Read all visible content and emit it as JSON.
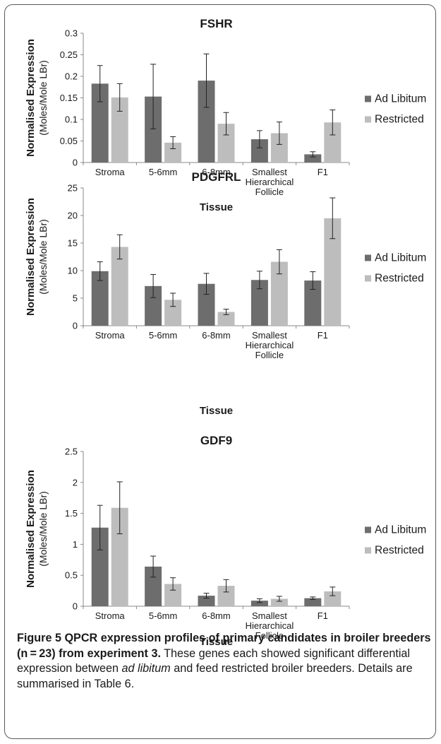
{
  "colors": {
    "ad_libitum": "#6d6d6d",
    "restricted": "#bdbdbd",
    "axis": "#8a8a8a",
    "text": "#1a1a1a"
  },
  "chart_data": [
    {
      "type": "bar",
      "title": "FSHR",
      "xlabel": "Tissue",
      "ylabel": "Normalised Expression",
      "ylabel2": "(Moles/Mole LBr)",
      "ylim": [
        0,
        0.3
      ],
      "yticks": [
        "0",
        "0.05",
        "0.1",
        "0.15",
        "0.2",
        "0.25",
        "0.3"
      ],
      "yticks_values": [
        0,
        0.05,
        0.1,
        0.15,
        0.2,
        0.25,
        0.3
      ],
      "categories": [
        [
          "Stroma"
        ],
        [
          "5-6mm"
        ],
        [
          "6-8mm"
        ],
        [
          "Smallest",
          "Hierarchical",
          "Follicle"
        ],
        [
          "F1"
        ]
      ],
      "grid": false,
      "legend": "right",
      "series": [
        {
          "name": "Ad Libitum",
          "values": [
            0.183,
            0.153,
            0.19,
            0.054,
            0.019
          ],
          "errors": [
            0.042,
            0.075,
            0.062,
            0.02,
            0.006
          ]
        },
        {
          "name": "Restricted",
          "values": [
            0.151,
            0.046,
            0.09,
            0.068,
            0.093
          ],
          "errors": [
            0.032,
            0.014,
            0.026,
            0.026,
            0.029
          ]
        }
      ]
    },
    {
      "type": "bar",
      "title": "PDGFRL",
      "xlabel": "Tissue",
      "ylabel": "Normalised Expression",
      "ylabel2": "(Moles/Mole LBr)",
      "ylim": [
        0,
        25
      ],
      "yticks": [
        "0",
        "5",
        "10",
        "15",
        "20",
        "25"
      ],
      "yticks_values": [
        0,
        5,
        10,
        15,
        20,
        25
      ],
      "categories": [
        [
          "Stroma"
        ],
        [
          "5-6mm"
        ],
        [
          "6-8mm"
        ],
        [
          "Smallest",
          "Hierarchical",
          "Follicle"
        ],
        [
          "F1"
        ]
      ],
      "grid": false,
      "legend": "right",
      "series": [
        {
          "name": "Ad Libitum",
          "values": [
            9.9,
            7.2,
            7.6,
            8.3,
            8.2
          ],
          "errors": [
            1.7,
            2.1,
            1.9,
            1.6,
            1.6
          ]
        },
        {
          "name": "Restricted",
          "values": [
            14.3,
            4.7,
            2.5,
            11.6,
            19.5
          ],
          "errors": [
            2.2,
            1.2,
            0.5,
            2.2,
            3.7
          ]
        }
      ]
    },
    {
      "type": "bar",
      "title": "GDF9",
      "xlabel": "Tissue",
      "ylabel": "Normalised Expression",
      "ylabel2": "(Moles/Mole LBr)",
      "ylim": [
        0,
        2.5
      ],
      "yticks": [
        "0",
        "0.5",
        "1",
        "1.5",
        "2",
        "2.5"
      ],
      "yticks_values": [
        0,
        0.5,
        1,
        1.5,
        2,
        2.5
      ],
      "categories": [
        [
          "Stroma"
        ],
        [
          "5-6mm"
        ],
        [
          "6-8mm"
        ],
        [
          "Smallest",
          "Hierarchical",
          "Follicle"
        ],
        [
          "F1"
        ]
      ],
      "grid": false,
      "legend": "right",
      "series": [
        {
          "name": "Ad Libitum",
          "values": [
            1.27,
            0.64,
            0.17,
            0.09,
            0.13
          ],
          "errors": [
            0.36,
            0.17,
            0.04,
            0.03,
            0.02
          ]
        },
        {
          "name": "Restricted",
          "values": [
            1.59,
            0.36,
            0.33,
            0.12,
            0.24
          ],
          "errors": [
            0.42,
            0.1,
            0.1,
            0.04,
            0.07
          ]
        }
      ]
    }
  ],
  "caption": {
    "bold": "Figure 5 QPCR expression profiles of primary candidates in broiler breeders (n = 23) from experiment 3.",
    "text_before_italic": " These genes each showed significant differential expression between ",
    "italic": "ad libitum",
    "text_after_italic": " and feed restricted broiler breeders. Details are summarised in Table 6."
  }
}
